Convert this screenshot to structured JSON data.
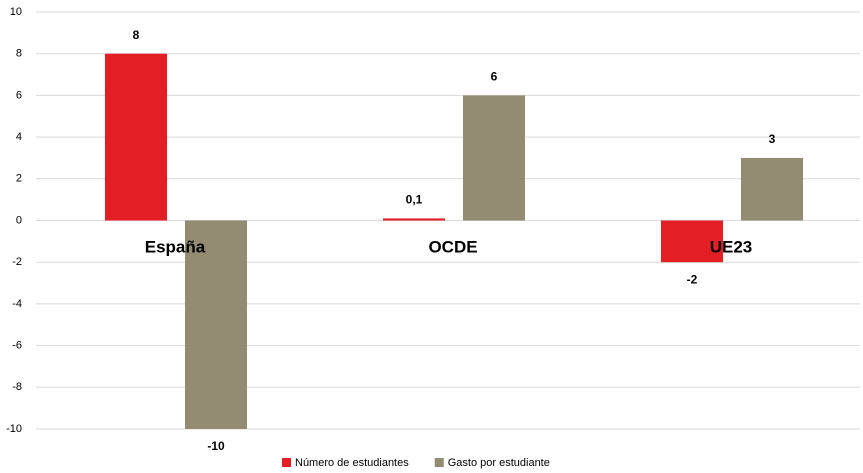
{
  "chart_data": {
    "type": "bar",
    "categories": [
      "España",
      "OCDE",
      "UE23"
    ],
    "series": [
      {
        "name": "Número de estudiantes",
        "color": "#e31e24",
        "values": [
          8,
          0.1,
          -2
        ],
        "value_labels": [
          "8",
          "0,1",
          "-2"
        ]
      },
      {
        "name": "Gasto por estudiante",
        "color": "#948b73",
        "values": [
          -10,
          6,
          3
        ],
        "value_labels": [
          "-10",
          "6",
          "3"
        ]
      }
    ],
    "ylim": [
      -10,
      10
    ],
    "yticks": [
      -10,
      -8,
      -6,
      -4,
      -2,
      0,
      2,
      4,
      6,
      8,
      10
    ],
    "grid": true,
    "legend": "bottom"
  }
}
